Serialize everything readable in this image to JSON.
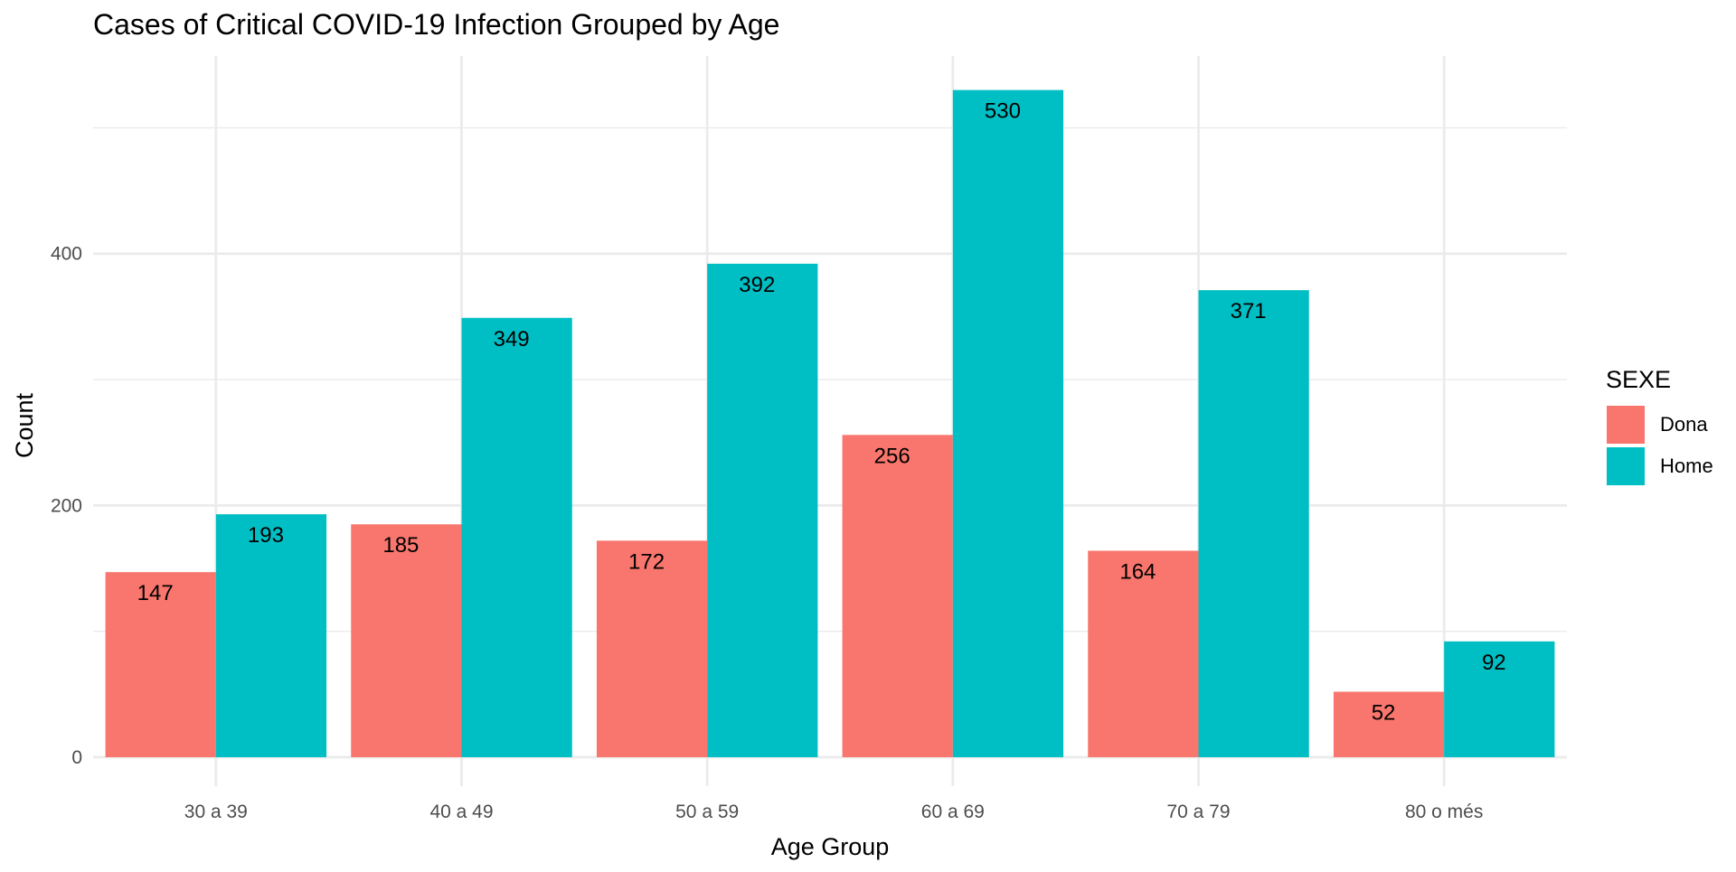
{
  "chart_data": {
    "type": "bar",
    "title": "Cases of Critical COVID-19 Infection Grouped by Age",
    "xlabel": "Age Group",
    "ylabel": "Count",
    "categories": [
      "30 a 39",
      "40 a 49",
      "50 a 59",
      "60 a 69",
      "70 a 79",
      "80 o més"
    ],
    "series": [
      {
        "name": "Dona",
        "color": "#F8766D",
        "values": [
          147,
          185,
          172,
          256,
          164,
          52
        ]
      },
      {
        "name": "Home",
        "color": "#00BFC4",
        "values": [
          193,
          349,
          392,
          530,
          371,
          92
        ]
      }
    ],
    "ylim": [
      -23,
      557
    ],
    "y_ticks": [
      0,
      200,
      400
    ],
    "y_ticks_labeled": [
      "0",
      "200",
      "400"
    ],
    "y_minor_ticks": [
      100,
      300,
      500
    ],
    "grid": true,
    "legend": {
      "title": "SEXE",
      "position": "right",
      "entries": [
        "Dona",
        "Home"
      ]
    },
    "data_labels": true
  }
}
